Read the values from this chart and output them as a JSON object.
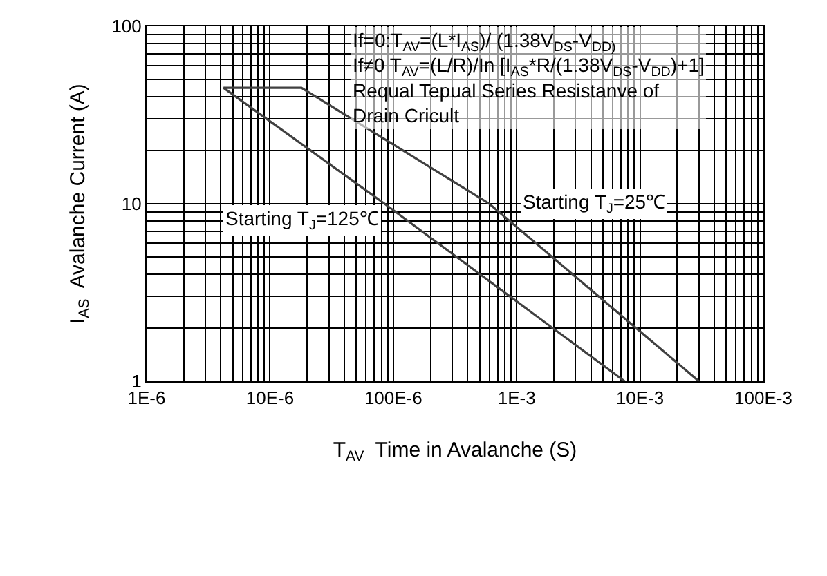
{
  "chart_data": {
    "type": "line",
    "log": "xy",
    "grid": true,
    "legend": false,
    "xlabel": "T$_{AV}$  Time in Avalanche (S)",
    "ylabel": "I$_{AS}$  Avalanche Current (A)",
    "xlim": [
      1e-06,
      0.1
    ],
    "ylim": [
      1,
      100
    ],
    "xticks": [
      {
        "value": 1e-06,
        "label": "1E-6"
      },
      {
        "value": 1e-05,
        "label": "10E-6"
      },
      {
        "value": 0.0001,
        "label": "100E-6"
      },
      {
        "value": 0.001,
        "label": "1E-3"
      },
      {
        "value": 0.01,
        "label": "10E-3"
      },
      {
        "value": 0.1,
        "label": "100E-3"
      }
    ],
    "yticks": [
      1,
      10,
      100
    ],
    "series": [
      {
        "name": "Starting T$_{J}$=25℃",
        "color": "#404040",
        "x": [
          4.2e-06,
          1.8e-05,
          0.0006,
          0.03
        ],
        "values": [
          45,
          45,
          10,
          1
        ]
      },
      {
        "name": "Starting T$_{J}$=125℃",
        "color": "#404040",
        "x": [
          4.2e-06,
          8.5e-05,
          0.0075
        ],
        "values": [
          45,
          10,
          1
        ]
      }
    ],
    "annotations": [
      "If=0:T$_{AV}$=(L*I$_{AS}$)/ (1.38V$_{DS}$-V$_{DD)}$\nIf≠0 T$_{AV}$=(L/R)/In [I$_{AS}$*R/(1.38V$_{DS}$-V$_{DD}$)+1]\nRequal Tepual Series Resistanve of\nDrain Cricult"
    ]
  }
}
